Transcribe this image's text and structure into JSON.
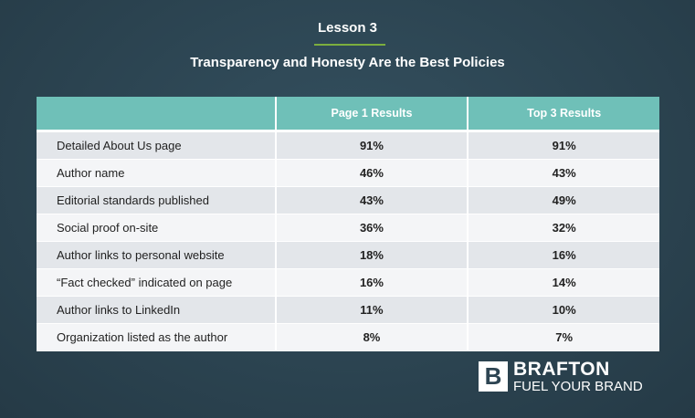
{
  "header": {
    "lesson": "Lesson 3",
    "title": "Transparency and Honesty Are the Best Policies"
  },
  "colors": {
    "background": "#2d4452",
    "header": "#6fc0b8",
    "accent_rule": "#7cae3e"
  },
  "chart_data": {
    "type": "table",
    "columns": [
      "",
      "Page 1 Results",
      "Top 3 Results"
    ],
    "rows": [
      {
        "label": "Detailed About Us page",
        "page1": "91%",
        "top3": "91%"
      },
      {
        "label": "Author name",
        "page1": "46%",
        "top3": "43%"
      },
      {
        "label": "Editorial standards published",
        "page1": "43%",
        "top3": "49%"
      },
      {
        "label": "Social proof on-site",
        "page1": "36%",
        "top3": "32%"
      },
      {
        "label": "Author links to personal website",
        "page1": "18%",
        "top3": "16%"
      },
      {
        "label": "“Fact checked” indicated on page",
        "page1": "16%",
        "top3": "14%"
      },
      {
        "label": "Author links to LinkedIn",
        "page1": "11%",
        "top3": "10%"
      },
      {
        "label": "Organization listed as the author",
        "page1": "8%",
        "top3": "7%"
      }
    ]
  },
  "logo": {
    "mark": "B",
    "name": "BRAFTON",
    "tagline": "FUEL YOUR BRAND"
  }
}
